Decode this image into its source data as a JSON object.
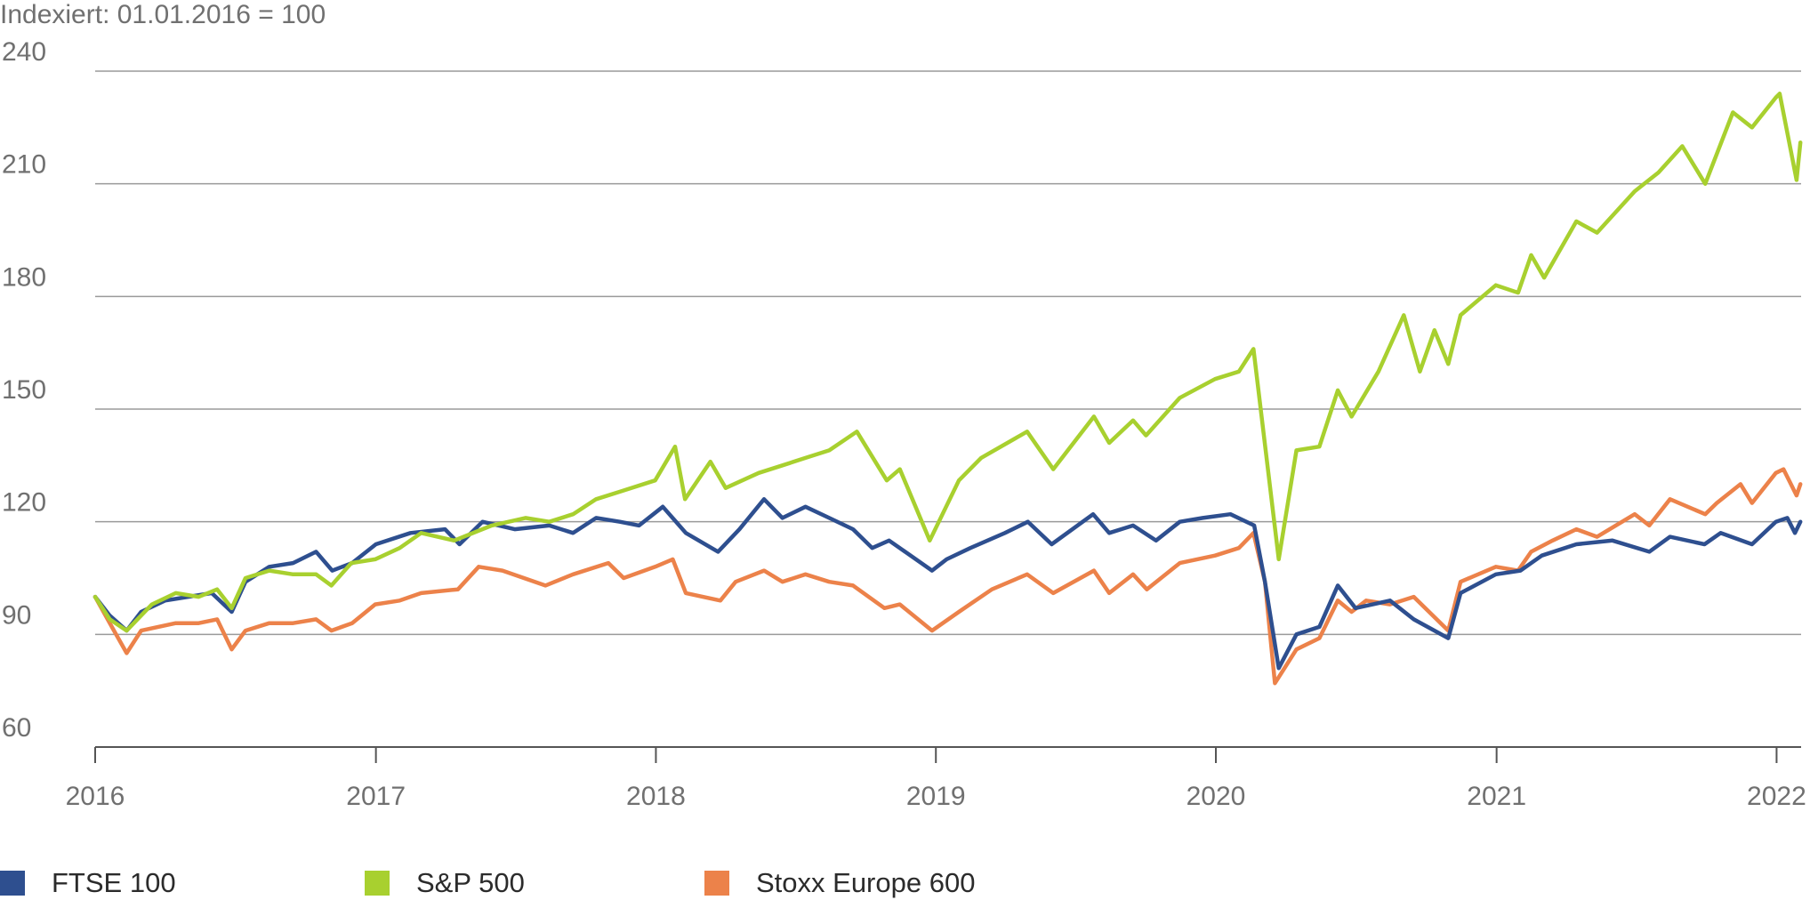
{
  "chart_data": {
    "type": "line",
    "subtitle": "Indexiert: 01.01.2016 = 100",
    "x_ticks": [
      "2016",
      "2017",
      "2018",
      "2019",
      "2020",
      "2021",
      "2022"
    ],
    "y_ticks": [
      "60",
      "90",
      "120",
      "150",
      "180",
      "210",
      "240"
    ],
    "ylim": [
      60,
      240
    ],
    "xlim": [
      "2016-01-01",
      "2022-02-01"
    ],
    "grid": "horizontal",
    "legend_position": "bottom",
    "series": [
      {
        "name": "FTSE 100",
        "color": "#2e4f8f",
        "points": [
          [
            "2016-01-01",
            100
          ],
          [
            "2016-01-20",
            95
          ],
          [
            "2016-02-11",
            91
          ],
          [
            "2016-03-01",
            96
          ],
          [
            "2016-04-01",
            99
          ],
          [
            "2016-05-01",
            100
          ],
          [
            "2016-06-01",
            101
          ],
          [
            "2016-06-27",
            96
          ],
          [
            "2016-07-15",
            104
          ],
          [
            "2016-08-15",
            108
          ],
          [
            "2016-09-15",
            109
          ],
          [
            "2016-10-15",
            112
          ],
          [
            "2016-11-05",
            107
          ],
          [
            "2016-12-01",
            109
          ],
          [
            "2017-01-01",
            114
          ],
          [
            "2017-02-15",
            117
          ],
          [
            "2017-04-01",
            118
          ],
          [
            "2017-04-20",
            114
          ],
          [
            "2017-05-20",
            120
          ],
          [
            "2017-07-01",
            118
          ],
          [
            "2017-08-15",
            119
          ],
          [
            "2017-09-15",
            117
          ],
          [
            "2017-10-15",
            121
          ],
          [
            "2017-11-15",
            120
          ],
          [
            "2017-12-10",
            119
          ],
          [
            "2018-01-10",
            124
          ],
          [
            "2018-02-09",
            117
          ],
          [
            "2018-03-23",
            112
          ],
          [
            "2018-04-20",
            118
          ],
          [
            "2018-05-22",
            126
          ],
          [
            "2018-06-15",
            121
          ],
          [
            "2018-07-15",
            124
          ],
          [
            "2018-08-15",
            121
          ],
          [
            "2018-09-15",
            118
          ],
          [
            "2018-10-10",
            113
          ],
          [
            "2018-11-01",
            115
          ],
          [
            "2018-12-27",
            107
          ],
          [
            "2019-01-15",
            110
          ],
          [
            "2019-02-15",
            113
          ],
          [
            "2019-04-01",
            117
          ],
          [
            "2019-05-01",
            120
          ],
          [
            "2019-06-01",
            114
          ],
          [
            "2019-07-25",
            122
          ],
          [
            "2019-08-15",
            117
          ],
          [
            "2019-09-15",
            119
          ],
          [
            "2019-10-15",
            115
          ],
          [
            "2019-11-15",
            120
          ],
          [
            "2019-12-15",
            121
          ],
          [
            "2020-01-20",
            122
          ],
          [
            "2020-02-20",
            119
          ],
          [
            "2020-03-05",
            104
          ],
          [
            "2020-03-23",
            81
          ],
          [
            "2020-04-15",
            90
          ],
          [
            "2020-05-15",
            92
          ],
          [
            "2020-06-08",
            103
          ],
          [
            "2020-07-01",
            97
          ],
          [
            "2020-08-15",
            99
          ],
          [
            "2020-09-15",
            94
          ],
          [
            "2020-10-30",
            89
          ],
          [
            "2020-11-15",
            101
          ],
          [
            "2020-12-31",
            106
          ],
          [
            "2021-02-01",
            107
          ],
          [
            "2021-03-01",
            111
          ],
          [
            "2021-04-15",
            114
          ],
          [
            "2021-06-01",
            115
          ],
          [
            "2021-07-19",
            112
          ],
          [
            "2021-08-15",
            116
          ],
          [
            "2021-09-29",
            114
          ],
          [
            "2021-10-20",
            117
          ],
          [
            "2021-11-30",
            114
          ],
          [
            "2021-12-31",
            120
          ],
          [
            "2022-01-15",
            121
          ],
          [
            "2022-01-25",
            117
          ],
          [
            "2022-02-01",
            120
          ]
        ]
      },
      {
        "name": "S&P 500",
        "color": "#a8d02f",
        "points": [
          [
            "2016-01-01",
            100
          ],
          [
            "2016-01-20",
            94
          ],
          [
            "2016-02-11",
            91
          ],
          [
            "2016-03-15",
            98
          ],
          [
            "2016-04-15",
            101
          ],
          [
            "2016-05-15",
            100
          ],
          [
            "2016-06-08",
            102
          ],
          [
            "2016-06-27",
            97
          ],
          [
            "2016-07-15",
            105
          ],
          [
            "2016-08-15",
            107
          ],
          [
            "2016-09-15",
            106
          ],
          [
            "2016-10-15",
            106
          ],
          [
            "2016-11-04",
            103
          ],
          [
            "2016-11-30",
            109
          ],
          [
            "2016-12-31",
            110
          ],
          [
            "2017-02-01",
            113
          ],
          [
            "2017-03-01",
            117
          ],
          [
            "2017-04-13",
            115
          ],
          [
            "2017-06-01",
            119
          ],
          [
            "2017-07-15",
            121
          ],
          [
            "2017-08-15",
            120
          ],
          [
            "2017-09-15",
            122
          ],
          [
            "2017-10-15",
            126
          ],
          [
            "2017-11-15",
            128
          ],
          [
            "2017-12-31",
            131
          ],
          [
            "2018-01-26",
            140
          ],
          [
            "2018-02-08",
            126
          ],
          [
            "2018-03-13",
            136
          ],
          [
            "2018-04-02",
            129
          ],
          [
            "2018-05-15",
            133
          ],
          [
            "2018-06-15",
            135
          ],
          [
            "2018-07-15",
            137
          ],
          [
            "2018-08-15",
            139
          ],
          [
            "2018-09-20",
            144
          ],
          [
            "2018-10-29",
            131
          ],
          [
            "2018-11-15",
            134
          ],
          [
            "2018-12-24",
            115
          ],
          [
            "2019-01-31",
            131
          ],
          [
            "2019-03-01",
            137
          ],
          [
            "2019-04-30",
            144
          ],
          [
            "2019-06-03",
            134
          ],
          [
            "2019-07-26",
            148
          ],
          [
            "2019-08-15",
            141
          ],
          [
            "2019-09-15",
            147
          ],
          [
            "2019-10-02",
            143
          ],
          [
            "2019-11-15",
            153
          ],
          [
            "2019-12-31",
            158
          ],
          [
            "2020-01-31",
            160
          ],
          [
            "2020-02-19",
            166
          ],
          [
            "2020-03-23",
            110
          ],
          [
            "2020-04-15",
            139
          ],
          [
            "2020-05-15",
            140
          ],
          [
            "2020-06-08",
            155
          ],
          [
            "2020-06-26",
            148
          ],
          [
            "2020-07-31",
            160
          ],
          [
            "2020-09-02",
            175
          ],
          [
            "2020-09-23",
            160
          ],
          [
            "2020-10-12",
            171
          ],
          [
            "2020-10-30",
            162
          ],
          [
            "2020-11-15",
            175
          ],
          [
            "2020-12-31",
            183
          ],
          [
            "2021-01-29",
            181
          ],
          [
            "2021-02-15",
            191
          ],
          [
            "2021-03-04",
            185
          ],
          [
            "2021-04-15",
            200
          ],
          [
            "2021-05-12",
            197
          ],
          [
            "2021-06-30",
            208
          ],
          [
            "2021-07-31",
            213
          ],
          [
            "2021-08-31",
            220
          ],
          [
            "2021-09-30",
            210
          ],
          [
            "2021-11-05",
            229
          ],
          [
            "2021-11-30",
            225
          ],
          [
            "2021-12-31",
            233
          ],
          [
            "2022-01-05",
            234
          ],
          [
            "2022-01-27",
            211
          ],
          [
            "2022-02-01",
            221
          ]
        ]
      },
      {
        "name": "Stoxx Europe 600",
        "color": "#ec824a",
        "points": [
          [
            "2016-01-01",
            100
          ],
          [
            "2016-01-20",
            93
          ],
          [
            "2016-02-11",
            85
          ],
          [
            "2016-03-01",
            91
          ],
          [
            "2016-04-15",
            93
          ],
          [
            "2016-05-15",
            93
          ],
          [
            "2016-06-08",
            94
          ],
          [
            "2016-06-27",
            86
          ],
          [
            "2016-07-15",
            91
          ],
          [
            "2016-08-15",
            93
          ],
          [
            "2016-09-15",
            93
          ],
          [
            "2016-10-15",
            94
          ],
          [
            "2016-11-04",
            91
          ],
          [
            "2016-12-01",
            93
          ],
          [
            "2016-12-31",
            98
          ],
          [
            "2017-02-01",
            99
          ],
          [
            "2017-03-01",
            101
          ],
          [
            "2017-04-18",
            102
          ],
          [
            "2017-05-15",
            108
          ],
          [
            "2017-06-15",
            107
          ],
          [
            "2017-08-10",
            103
          ],
          [
            "2017-09-15",
            106
          ],
          [
            "2017-10-31",
            109
          ],
          [
            "2017-11-20",
            105
          ],
          [
            "2017-12-31",
            108
          ],
          [
            "2018-01-23",
            110
          ],
          [
            "2018-02-09",
            101
          ],
          [
            "2018-03-26",
            99
          ],
          [
            "2018-04-15",
            104
          ],
          [
            "2018-05-22",
            107
          ],
          [
            "2018-06-15",
            104
          ],
          [
            "2018-07-15",
            106
          ],
          [
            "2018-08-15",
            104
          ],
          [
            "2018-09-15",
            103
          ],
          [
            "2018-10-26",
            97
          ],
          [
            "2018-11-15",
            98
          ],
          [
            "2018-12-27",
            91
          ],
          [
            "2019-01-31",
            96
          ],
          [
            "2019-03-15",
            102
          ],
          [
            "2019-04-30",
            106
          ],
          [
            "2019-06-03",
            101
          ],
          [
            "2019-07-26",
            107
          ],
          [
            "2019-08-15",
            101
          ],
          [
            "2019-09-15",
            106
          ],
          [
            "2019-10-03",
            102
          ],
          [
            "2019-11-15",
            109
          ],
          [
            "2019-12-31",
            111
          ],
          [
            "2020-01-31",
            113
          ],
          [
            "2020-02-19",
            117
          ],
          [
            "2020-03-05",
            104
          ],
          [
            "2020-03-18",
            77
          ],
          [
            "2020-04-15",
            86
          ],
          [
            "2020-05-15",
            89
          ],
          [
            "2020-06-08",
            99
          ],
          [
            "2020-06-26",
            96
          ],
          [
            "2020-07-15",
            99
          ],
          [
            "2020-08-15",
            98
          ],
          [
            "2020-09-15",
            100
          ],
          [
            "2020-10-30",
            91
          ],
          [
            "2020-11-15",
            104
          ],
          [
            "2020-12-31",
            108
          ],
          [
            "2021-01-29",
            107
          ],
          [
            "2021-02-15",
            112
          ],
          [
            "2021-03-15",
            115
          ],
          [
            "2021-04-15",
            118
          ],
          [
            "2021-05-12",
            116
          ],
          [
            "2021-06-30",
            122
          ],
          [
            "2021-07-19",
            119
          ],
          [
            "2021-08-15",
            126
          ],
          [
            "2021-09-30",
            122
          ],
          [
            "2021-10-15",
            125
          ],
          [
            "2021-11-15",
            130
          ],
          [
            "2021-11-30",
            125
          ],
          [
            "2021-12-31",
            133
          ],
          [
            "2022-01-10",
            134
          ],
          [
            "2022-01-27",
            127
          ],
          [
            "2022-02-01",
            130
          ]
        ]
      }
    ]
  }
}
